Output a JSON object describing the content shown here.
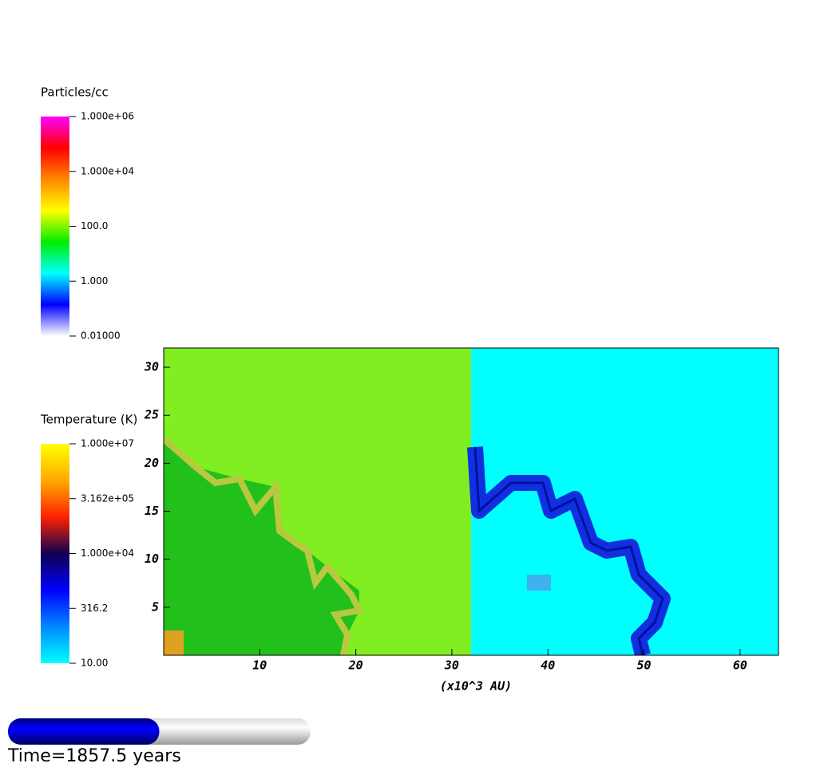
{
  "chart_data": {
    "type": "field",
    "xlabel": "(x10^3 AU)",
    "xlim": [
      0,
      64
    ],
    "ylim": [
      0,
      32
    ],
    "xticks": [
      10,
      20,
      30,
      40,
      50,
      60
    ],
    "yticks": [
      5,
      10,
      15,
      20,
      25,
      30
    ],
    "colorbars": [
      {
        "title": "Particles/cc",
        "scale": "log",
        "lim": [
          0.01,
          1000000
        ],
        "colors": [
          "#ff00ff",
          "#ff0000",
          "#ff8800",
          "#ffff00",
          "#00ee00",
          "#00ffff",
          "#0000ff",
          "#ffffff"
        ],
        "ticks": [
          {
            "value": 1000000,
            "label": "1.000e+06"
          },
          {
            "value": 10000,
            "label": "1.000e+04"
          },
          {
            "value": 100,
            "label": "100.0"
          },
          {
            "value": 1,
            "label": "1.000"
          },
          {
            "value": 0.01,
            "label": "0.01000"
          }
        ]
      },
      {
        "title": "Temperature (K)",
        "scale": "log",
        "lim": [
          10,
          10000000
        ],
        "colors": [
          "#ffff00",
          "#ffaa00",
          "#ff2200",
          "#100050",
          "#0000ff",
          "#0088ff",
          "#00ffff"
        ],
        "ticks": [
          {
            "value": 10000000,
            "label": "1.000e+07"
          },
          {
            "value": 316200,
            "label": "3.162e+05"
          },
          {
            "value": 10000,
            "label": "1.000e+04"
          },
          {
            "value": 316.2,
            "label": "316.2"
          },
          {
            "value": 10,
            "label": "10.00"
          }
        ]
      }
    ],
    "time_label": "Time=1857.5 years",
    "progress": 0.5
  }
}
